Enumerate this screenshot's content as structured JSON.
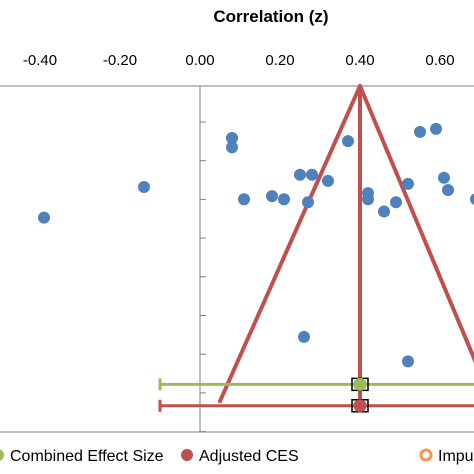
{
  "chart_data": {
    "type": "scatter",
    "title": "Correlation (z)",
    "x_axis": {
      "position": "top",
      "range": [
        -0.47,
        0.7
      ],
      "ticks": [
        -0.4,
        -0.2,
        0.0,
        0.2,
        0.4,
        0.6
      ],
      "tick_labels": [
        "-0.40",
        "-0.20",
        "0.00",
        "0.20",
        "0.40",
        "0.60"
      ]
    },
    "y_axis": {
      "range": [
        0,
        10
      ],
      "inverted": false,
      "tick_labels_visible": false
    },
    "grid": false,
    "series": [
      {
        "name": "",
        "color": "#4F81BD",
        "marker": "circle",
        "points": [
          {
            "x": -0.39,
            "y": 5.7
          },
          {
            "x": -0.14,
            "y": 6.7
          },
          {
            "x": 0.08,
            "y": 8.3
          },
          {
            "x": 0.08,
            "y": 8.0
          },
          {
            "x": 0.11,
            "y": 6.3
          },
          {
            "x": 0.18,
            "y": 6.4
          },
          {
            "x": 0.21,
            "y": 6.3
          },
          {
            "x": 0.25,
            "y": 7.1
          },
          {
            "x": 0.28,
            "y": 7.1
          },
          {
            "x": 0.26,
            "y": 1.8
          },
          {
            "x": 0.27,
            "y": 6.2
          },
          {
            "x": 0.32,
            "y": 6.9
          },
          {
            "x": 0.37,
            "y": 8.2
          },
          {
            "x": 0.42,
            "y": 6.5
          },
          {
            "x": 0.42,
            "y": 6.3
          },
          {
            "x": 0.46,
            "y": 5.9
          },
          {
            "x": 0.49,
            "y": 6.2
          },
          {
            "x": 0.52,
            "y": 6.8
          },
          {
            "x": 0.52,
            "y": 1.0
          },
          {
            "x": 0.55,
            "y": 8.5
          },
          {
            "x": 0.59,
            "y": 8.6
          },
          {
            "x": 0.61,
            "y": 7.0
          },
          {
            "x": 0.62,
            "y": 6.6
          },
          {
            "x": 0.69,
            "y": 6.3
          }
        ]
      }
    ],
    "funnel": {
      "color": "#C0504D",
      "apex": {
        "x": 0.4,
        "y": 10.0
      },
      "bottom_left": {
        "x": 0.05,
        "y": -0.3
      },
      "bottom_right": {
        "x": 0.73,
        "y": -0.3
      },
      "center_line": {
        "x": 0.4,
        "y_from": 10.0,
        "y_to": -0.3
      }
    },
    "effect_markers": [
      {
        "name": "Combined Effect Size",
        "color": "#9BBB59",
        "x": 0.4,
        "y": 0.25,
        "ci": [
          -0.1,
          0.75
        ]
      },
      {
        "name": "Adjusted CES",
        "color": "#C0504D",
        "x": 0.4,
        "y": -0.45,
        "ci": [
          -0.1,
          0.75
        ]
      }
    ],
    "legend": {
      "placement": "bottom",
      "entries": [
        {
          "label": "Combined Effect Size",
          "color": "#9BBB59",
          "marker": "filled-circle"
        },
        {
          "label": "Adjusted CES",
          "color": "#C0504D",
          "marker": "filled-circle"
        },
        {
          "label": "Imputed",
          "color": "#F79646",
          "marker": "open-circle"
        }
      ]
    }
  }
}
